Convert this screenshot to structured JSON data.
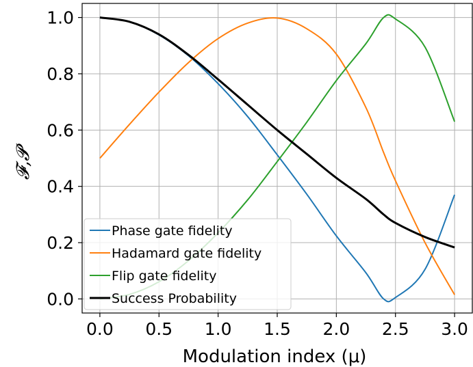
{
  "chart_data": {
    "type": "line",
    "xlabel": "Modulation index (μ)",
    "ylabel": "𝓕,𝓟",
    "xlim": [
      -0.15,
      3.15
    ],
    "ylim": [
      -0.05,
      1.05
    ],
    "xticks": [
      "0.0",
      "0.5",
      "1.0",
      "1.5",
      "2.0",
      "2.5",
      "3.0"
    ],
    "yticks": [
      "0.0",
      "0.2",
      "0.4",
      "0.6",
      "0.8",
      "1.0"
    ],
    "grid": true,
    "legend_position": "lower-left",
    "x": [
      0.0,
      0.25,
      0.5,
      0.75,
      1.0,
      1.25,
      1.5,
      1.75,
      2.0,
      2.25,
      2.4,
      2.5,
      2.75,
      3.0
    ],
    "series": [
      {
        "name": "Phase gate fidelity",
        "color": "#1f77b4",
        "width": 2,
        "values": [
          1.0,
          0.985,
          0.938,
          0.864,
          0.765,
          0.648,
          0.512,
          0.372,
          0.224,
          0.093,
          0.0,
          0.005,
          0.105,
          0.37
        ]
      },
      {
        "name": "Hadamard gate fidelity",
        "color": "#ff7f0e",
        "width": 2,
        "values": [
          0.5,
          0.62,
          0.735,
          0.84,
          0.925,
          0.98,
          0.998,
          0.96,
          0.87,
          0.68,
          0.52,
          0.42,
          0.2,
          0.015
        ]
      },
      {
        "name": "Flip gate fidelity",
        "color": "#2ca02c",
        "width": 2,
        "values": [
          0.0,
          0.016,
          0.061,
          0.136,
          0.235,
          0.352,
          0.488,
          0.628,
          0.776,
          0.907,
          1.0,
          0.995,
          0.895,
          0.63
        ]
      },
      {
        "name": "Success Probability",
        "color": "#000000",
        "width": 3,
        "values": [
          1.0,
          0.985,
          0.94,
          0.867,
          0.78,
          0.69,
          0.6,
          0.515,
          0.43,
          0.355,
          0.3,
          0.27,
          0.22,
          0.183
        ]
      }
    ]
  }
}
